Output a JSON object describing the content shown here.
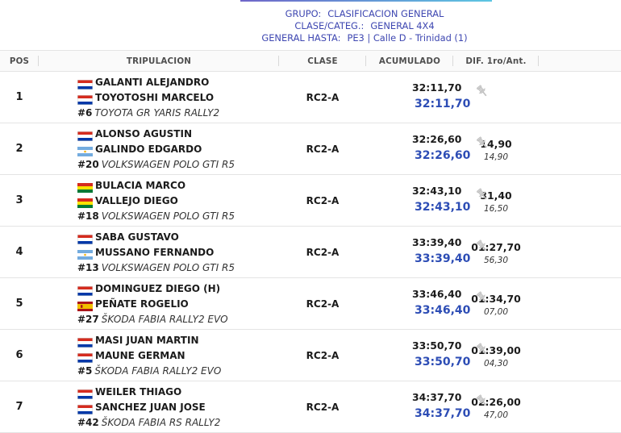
{
  "header": {
    "grupo_label": "GRUPO:",
    "grupo_value": "CLASIFICACION GENERAL",
    "clase_label": "CLASE/CATEG.:",
    "clase_value": "GENERAL 4X4",
    "hasta_label": "GENERAL HASTA:",
    "hasta_value": "PE3 | Calle D - Trinidad (1)"
  },
  "columns": {
    "pos": "POS",
    "tripulacion": "TRIPULACION",
    "clase": "CLASE",
    "acumulado": "ACUMULADO",
    "dif": "DIF. 1ro/Ant."
  },
  "icons": {
    "stage_pin": "pushpin-icon"
  },
  "colors": {
    "accent_blue": "#2d4db5",
    "header_blue": "#3e47b1"
  },
  "rows": [
    {
      "pos": "1",
      "driver": "GALANTI ALEJANDRO",
      "driver_flag": "PY",
      "codriver": "TOYOTOSHI MARCELO",
      "codriver_flag": "PY",
      "num": "#6",
      "car": "TOYOTA GR YARIS RALLY2",
      "clase": "RC2-A",
      "acum_time": "32:11,70",
      "acum_total": "32:11,70",
      "dif_first": "",
      "dif_prev": ""
    },
    {
      "pos": "2",
      "driver": "ALONSO AGUSTIN",
      "driver_flag": "PY",
      "codriver": "GALINDO EDGARDO",
      "codriver_flag": "AR",
      "num": "#20",
      "car": "VOLKSWAGEN POLO GTI R5",
      "clase": "RC2-A",
      "acum_time": "32:26,60",
      "acum_total": "32:26,60",
      "dif_first": "14,90",
      "dif_prev": "14,90"
    },
    {
      "pos": "3",
      "driver": "BULACIA MARCO",
      "driver_flag": "BO",
      "codriver": "VALLEJO DIEGO",
      "codriver_flag": "BO",
      "num": "#18",
      "car": "VOLKSWAGEN POLO GTI R5",
      "clase": "RC2-A",
      "acum_time": "32:43,10",
      "acum_total": "32:43,10",
      "dif_first": "31,40",
      "dif_prev": "16,50"
    },
    {
      "pos": "4",
      "driver": "SABA GUSTAVO",
      "driver_flag": "PY",
      "codriver": "MUSSANO FERNANDO",
      "codriver_flag": "AR",
      "num": "#13",
      "car": "VOLKSWAGEN POLO GTI R5",
      "clase": "RC2-A",
      "acum_time": "33:39,40",
      "acum_total": "33:39,40",
      "dif_first": "01:27,70",
      "dif_prev": "56,30"
    },
    {
      "pos": "5",
      "driver": "DOMINGUEZ DIEGO (H)",
      "driver_flag": "PY",
      "codriver": "PEÑATE ROGELIO",
      "codriver_flag": "ES",
      "num": "#27",
      "car": "ŠKODA FABIA RALLY2 EVO",
      "clase": "RC2-A",
      "acum_time": "33:46,40",
      "acum_total": "33:46,40",
      "dif_first": "01:34,70",
      "dif_prev": "07,00"
    },
    {
      "pos": "6",
      "driver": "MASI JUAN MARTIN",
      "driver_flag": "PY",
      "codriver": "MAUNE GERMAN",
      "codriver_flag": "PY",
      "num": "#5",
      "car": "ŠKODA FABIA RALLY2 EVO",
      "clase": "RC2-A",
      "acum_time": "33:50,70",
      "acum_total": "33:50,70",
      "dif_first": "01:39,00",
      "dif_prev": "04,30"
    },
    {
      "pos": "7",
      "driver": "WEILER THIAGO",
      "driver_flag": "PY",
      "codriver": "SANCHEZ JUAN JOSE",
      "codriver_flag": "PY",
      "num": "#42",
      "car": "ŠKODA FABIA RS RALLY2",
      "clase": "RC2-A",
      "acum_time": "34:37,70",
      "acum_total": "34:37,70",
      "dif_first": "02:26,00",
      "dif_prev": "47,00"
    }
  ]
}
